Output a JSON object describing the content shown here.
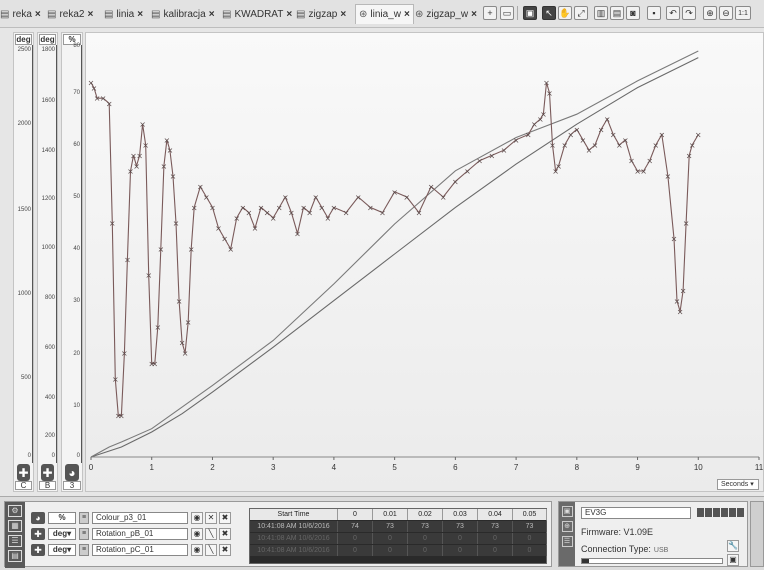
{
  "tabs": [
    {
      "label": "reka",
      "icon": "graph-icon"
    },
    {
      "label": "reka2",
      "icon": "graph-icon"
    },
    {
      "label": "linia",
      "icon": "graph-icon"
    },
    {
      "label": "kalibracja",
      "icon": "graph-icon"
    },
    {
      "label": "KWADRAT",
      "icon": "graph-icon"
    },
    {
      "label": "zigzap",
      "icon": "graph-icon"
    },
    {
      "label": "linia_w",
      "icon": "record-icon",
      "active": true
    },
    {
      "label": "zigzap_w",
      "icon": "record-icon"
    }
  ],
  "toolbar": {
    "zoom_1to1": "1:1"
  },
  "scales": [
    {
      "unit": "deg",
      "port": "C",
      "ticks": [
        "2500",
        "2000",
        "1500",
        "1000",
        "500",
        "0"
      ]
    },
    {
      "unit": "deg",
      "port": "B",
      "ticks": [
        "1800",
        "1600",
        "1400",
        "1200",
        "1000",
        "800",
        "600",
        "400",
        "200",
        "0"
      ]
    },
    {
      "unit": "%",
      "port": "3",
      "ticks": [
        "80",
        "70",
        "60",
        "50",
        "40",
        "30",
        "20",
        "10",
        "0"
      ]
    }
  ],
  "chart_data": {
    "type": "line",
    "xlabel": "Seconds",
    "xlim": [
      0,
      11
    ],
    "x_ticks": [
      "0",
      "1",
      "2",
      "3",
      "4",
      "5",
      "6",
      "7",
      "8",
      "9",
      "10",
      "11"
    ],
    "series": [
      {
        "name": "Rotation_pC_01",
        "color": "#6a6a6a",
        "x": [
          0,
          0.5,
          1,
          1.5,
          2,
          3,
          4,
          5,
          6,
          7,
          8,
          9,
          10
        ],
        "y": [
          0,
          30,
          75,
          130,
          195,
          330,
          470,
          610,
          750,
          880,
          1000,
          1110,
          1200
        ]
      },
      {
        "name": "Rotation_pB_01",
        "color": "#7a7a7a",
        "x": [
          0,
          0.3,
          0.5,
          1,
          1.5,
          2,
          3,
          4,
          5,
          6,
          7,
          8,
          9,
          10
        ],
        "y": [
          0,
          30,
          45,
          85,
          150,
          215,
          350,
          520,
          700,
          860,
          960,
          1030,
          1130,
          1220
        ]
      },
      {
        "name": "Colour_p3_01",
        "color": "#7a5a5a",
        "x": [
          0,
          0.05,
          0.1,
          0.2,
          0.3,
          0.35,
          0.4,
          0.45,
          0.5,
          0.55,
          0.6,
          0.65,
          0.7,
          0.75,
          0.8,
          0.85,
          0.9,
          0.95,
          1.0,
          1.05,
          1.1,
          1.15,
          1.2,
          1.25,
          1.3,
          1.35,
          1.4,
          1.45,
          1.5,
          1.55,
          1.6,
          1.65,
          1.7,
          1.8,
          1.9,
          2.0,
          2.1,
          2.2,
          2.3,
          2.4,
          2.5,
          2.6,
          2.7,
          2.8,
          2.9,
          3.0,
          3.1,
          3.2,
          3.3,
          3.4,
          3.5,
          3.6,
          3.7,
          3.8,
          3.9,
          4.0,
          4.2,
          4.4,
          4.6,
          4.8,
          5.0,
          5.2,
          5.4,
          5.6,
          5.8,
          6.0,
          6.2,
          6.4,
          6.6,
          6.8,
          7.0,
          7.2,
          7.3,
          7.4,
          7.45,
          7.5,
          7.55,
          7.6,
          7.65,
          7.7,
          7.8,
          7.9,
          8.0,
          8.1,
          8.2,
          8.3,
          8.4,
          8.5,
          8.6,
          8.7,
          8.8,
          8.9,
          9.0,
          9.1,
          9.2,
          9.3,
          9.4,
          9.5,
          9.6,
          9.65,
          9.7,
          9.75,
          9.8,
          9.85,
          9.9,
          10.0
        ],
        "y": [
          72,
          71,
          69,
          69,
          68,
          45,
          15,
          8,
          8,
          20,
          38,
          55,
          58,
          56,
          58,
          64,
          60,
          35,
          18,
          18,
          25,
          40,
          56,
          61,
          59,
          54,
          45,
          30,
          22,
          20,
          26,
          40,
          48,
          52,
          50,
          48,
          44,
          42,
          40,
          46,
          48,
          47,
          44,
          48,
          47,
          46,
          48,
          50,
          47,
          43,
          48,
          47,
          50,
          48,
          46,
          48,
          47,
          50,
          48,
          47,
          51,
          50,
          47,
          52,
          50,
          53,
          55,
          57,
          58,
          59,
          61,
          62,
          64,
          65,
          66,
          72,
          70,
          60,
          55,
          56,
          60,
          62,
          63,
          61,
          59,
          60,
          63,
          65,
          62,
          60,
          61,
          57,
          55,
          55,
          57,
          60,
          62,
          54,
          42,
          30,
          28,
          32,
          45,
          58,
          60,
          62
        ]
      }
    ]
  },
  "units_select": "Seconds",
  "sensors": [
    {
      "unit": "%",
      "name": "Colour_p3_01"
    },
    {
      "unit": "deg",
      "name": "Rotation_pB_01"
    },
    {
      "unit": "deg",
      "name": "Rotation_pC_01"
    }
  ],
  "data_table": {
    "headers": [
      "Start Time",
      "0",
      "0.01",
      "0.02",
      "0.03",
      "0.04",
      "0.05"
    ],
    "rows": [
      [
        "10:41:08 AM 10/6/2016",
        "74",
        "73",
        "73",
        "73",
        "73",
        "73"
      ],
      [
        "10:41:08 AM 10/6/2016",
        "0",
        "0",
        "0",
        "0",
        "0",
        "0"
      ],
      [
        "10:41:08 AM 10/6/2016",
        "0",
        "0",
        "0",
        "0",
        "0",
        "0"
      ]
    ]
  },
  "brick": {
    "name": "EV3G",
    "firmware": "Firmware: V1.09E",
    "connection_label": "Connection Type:",
    "connection_value": "USB",
    "progress": 0.05
  }
}
